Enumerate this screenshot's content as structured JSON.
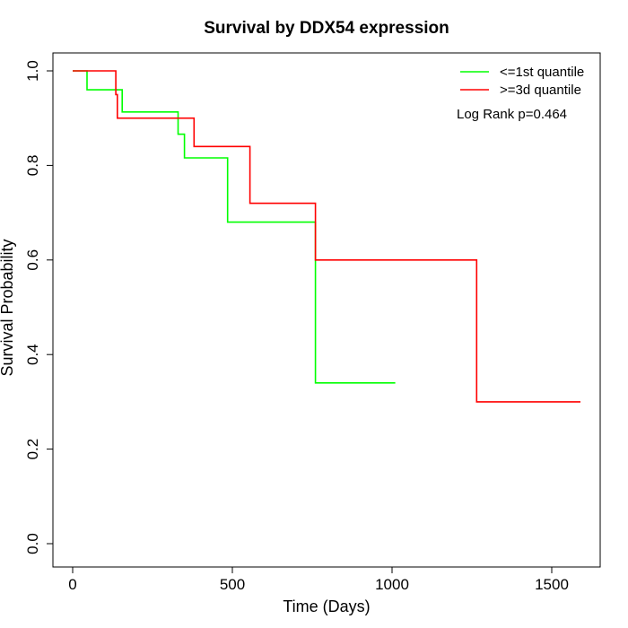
{
  "chart_data": {
    "type": "line",
    "subtype": "kaplan-meier-step",
    "title": "Survival by DDX54 expression",
    "xlabel": "Time (Days)",
    "ylabel": "Survival Probability",
    "xlim": [
      0,
      1600
    ],
    "ylim": [
      0,
      1.0
    ],
    "xticks": [
      0,
      500,
      1000,
      1500
    ],
    "yticks": [
      0.0,
      0.2,
      0.4,
      0.6,
      0.8,
      1.0
    ],
    "xtick_labels": [
      "0",
      "500",
      "1000",
      "1500"
    ],
    "ytick_labels": [
      "0.0",
      "0.2",
      "0.4",
      "0.6",
      "0.8",
      "1.0"
    ],
    "grid": false,
    "legend_position": "top-right",
    "annotation": "Log Rank p=0.464",
    "series": [
      {
        "name": "<=1st quantile",
        "color": "#00ff00",
        "x": [
          0,
          45,
          45,
          155,
          155,
          330,
          330,
          350,
          350,
          485,
          485,
          760,
          760,
          1010
        ],
        "y": [
          1.0,
          1.0,
          0.96,
          0.96,
          0.913,
          0.913,
          0.866,
          0.866,
          0.816,
          0.816,
          0.68,
          0.68,
          0.34,
          0.34
        ]
      },
      {
        "name": ">=3d quantile",
        "color": "#ff0000",
        "x": [
          0,
          135,
          135,
          140,
          140,
          380,
          380,
          555,
          555,
          760,
          760,
          1265,
          1265,
          1590
        ],
        "y": [
          1.0,
          1.0,
          0.95,
          0.95,
          0.9,
          0.9,
          0.84,
          0.84,
          0.72,
          0.72,
          0.6,
          0.6,
          0.3,
          0.3
        ]
      }
    ]
  }
}
